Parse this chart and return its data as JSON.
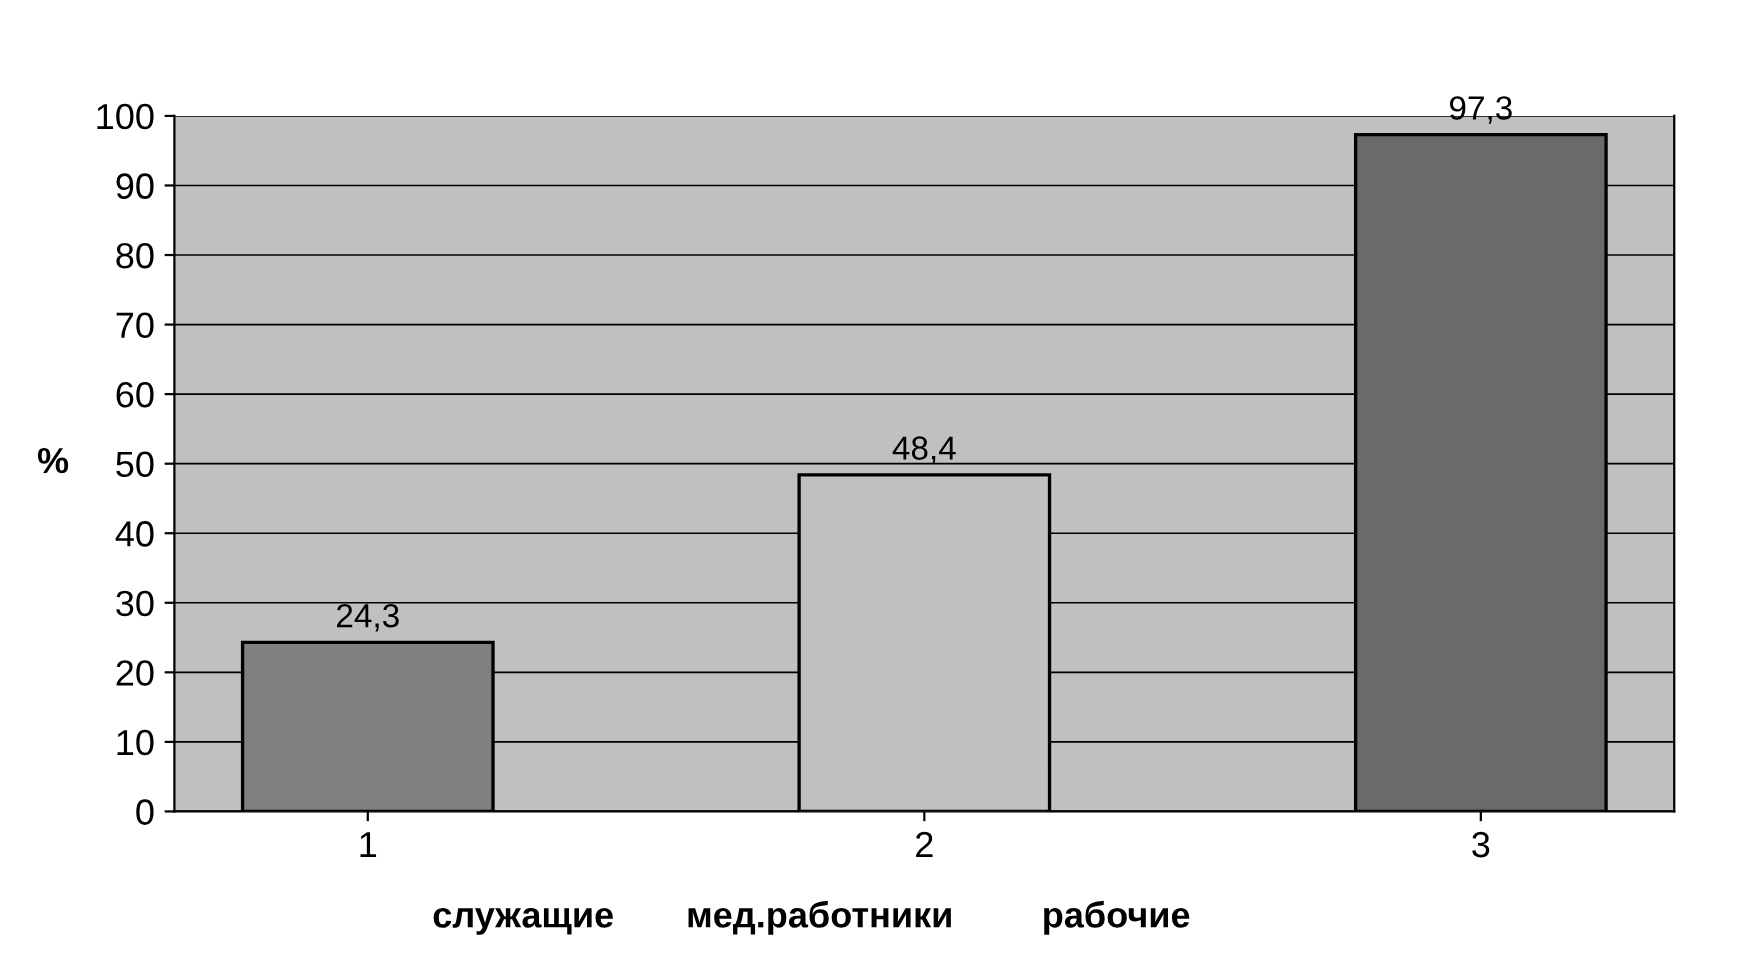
{
  "chart_data": {
    "type": "bar",
    "categories": [
      "1",
      "2",
      "3"
    ],
    "values": [
      24.3,
      48.4,
      97.3
    ],
    "colors": [
      "#808080",
      "#c0c0c0",
      "#6a6a6a"
    ],
    "value_labels": [
      "24,3",
      "48,4",
      "97,3"
    ],
    "ylabel": "%",
    "ylim": [
      0,
      100
    ],
    "yticks": [
      0,
      10,
      20,
      30,
      40,
      50,
      60,
      70,
      80,
      90,
      100
    ],
    "grid": "y",
    "annotations": [
      "служащие",
      "мед.работники",
      "рабочие"
    ]
  }
}
